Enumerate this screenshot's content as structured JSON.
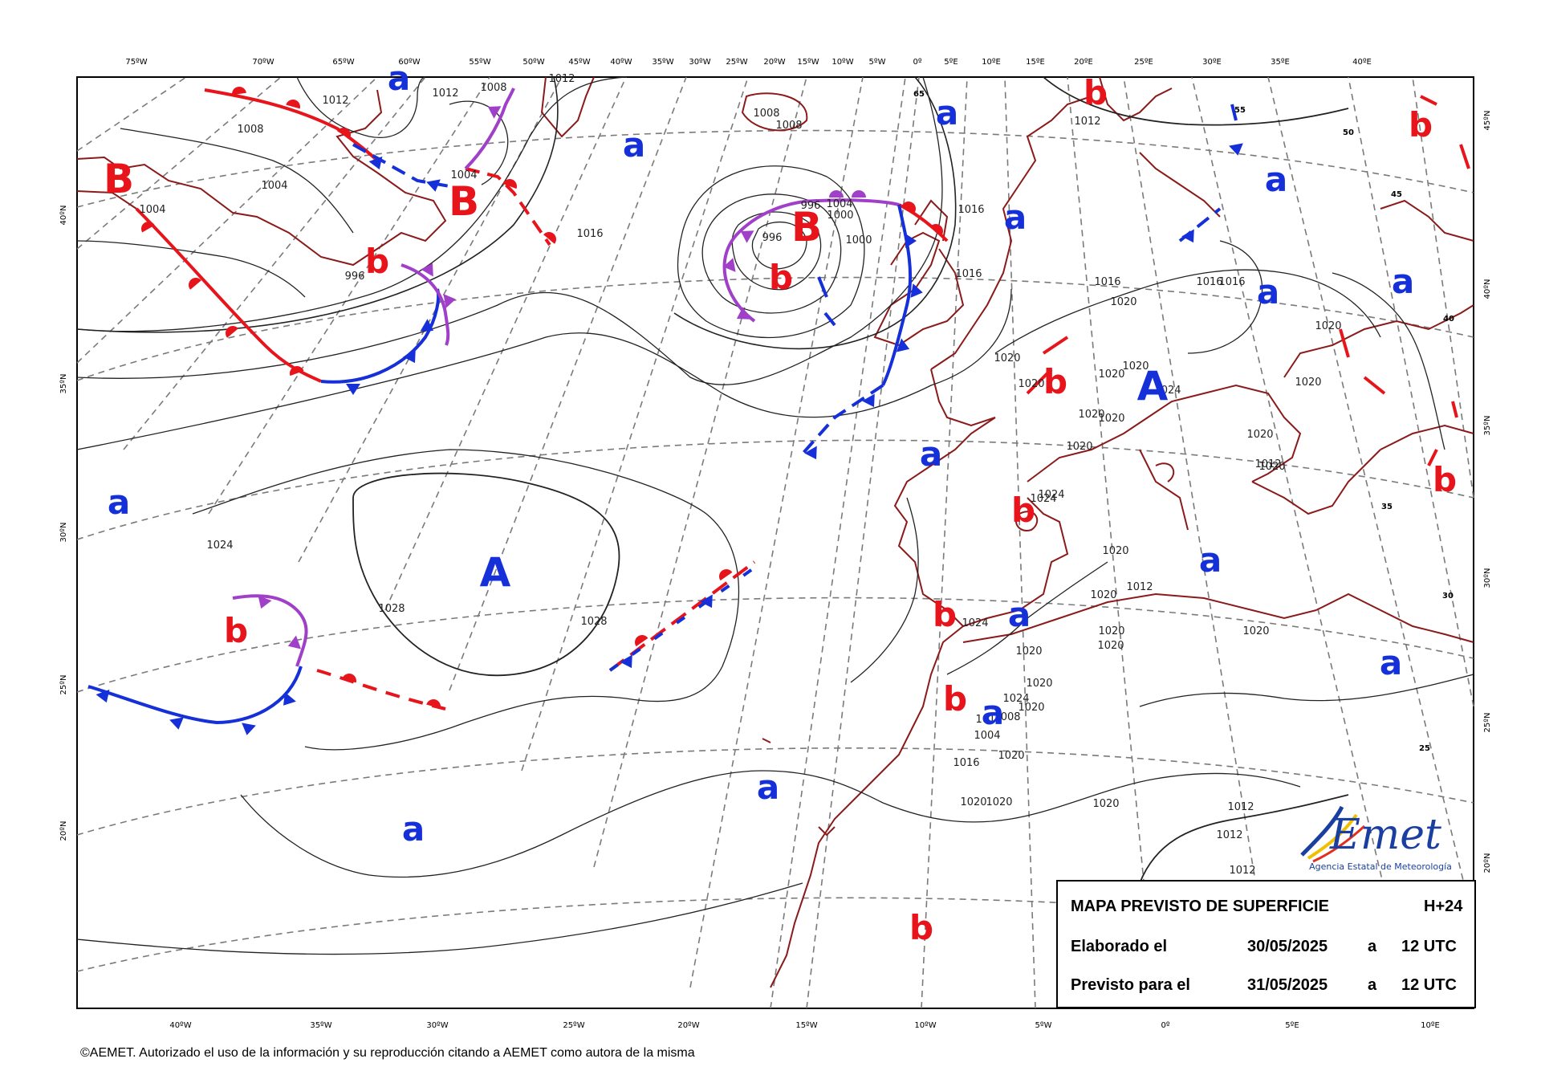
{
  "map": {
    "top_lon_labels": [
      "75ºW",
      "70ºW",
      "65ºW",
      "60ºW",
      "55ºW",
      "50ºW",
      "45ºW",
      "40ºW",
      "35ºW",
      "30ºW",
      "25ºW",
      "20ºW",
      "15ºW",
      "10ºW",
      "5ºW",
      "0º",
      "5ºE",
      "10ºE",
      "15ºE",
      "20ºE",
      "25ºE",
      "30ºE",
      "35ºE",
      "40ºE"
    ],
    "bottom_lon_labels": [
      "40ºW",
      "35ºW",
      "30ºW",
      "25ºW",
      "20ºW",
      "15ºW",
      "10ºW",
      "5ºW",
      "0º",
      "5ºE",
      "10ºE"
    ],
    "left_lat_labels": [
      "40ºN",
      "35ºN",
      "30ºN",
      "25ºN",
      "20ºN"
    ],
    "right_lat_labels": [
      "45ºN",
      "40ºN",
      "35ºN",
      "30ºN",
      "25ºN",
      "20ºN"
    ],
    "inner_lat_marks": [
      "65",
      "55",
      "50",
      "45",
      "40",
      "35",
      "30",
      "25"
    ],
    "pressure_centers": [
      {
        "label": "B",
        "type": "low"
      },
      {
        "label": "B",
        "type": "low"
      },
      {
        "label": "B",
        "type": "low"
      },
      {
        "label": "A",
        "type": "high"
      },
      {
        "label": "A",
        "type": "high"
      }
    ],
    "relative_labels": {
      "a": "a",
      "b": "b"
    },
    "isobar_labels": [
      "1012",
      "1012",
      "1012",
      "1012",
      "1008",
      "1008",
      "1008",
      "1008",
      "1004",
      "1004",
      "1004",
      "1000",
      "1000",
      "1004",
      "996",
      "996",
      "996",
      "1016",
      "1016",
      "1016",
      "1016",
      "1016",
      "1016",
      "1020",
      "1020",
      "1020",
      "1020",
      "1020",
      "1020",
      "1020",
      "1020",
      "1020",
      "1020",
      "1020",
      "1020",
      "1024",
      "1024",
      "1024",
      "1024",
      "1024",
      "1028",
      "1028",
      "1012",
      "1012",
      "1012",
      "1008",
      "1004",
      "1024",
      "1016",
      "1020",
      "1020",
      "1020",
      "1020",
      "1020",
      "1020",
      "1020",
      "1020",
      "1020",
      "1020",
      "1020",
      "1020",
      "1012",
      "1012",
      "1012"
    ],
    "colors": {
      "low": "#e8141b",
      "high": "#1530d8",
      "warm_front": "#e8141b",
      "cold_front": "#1530d8",
      "occluded_front": "#a040c8",
      "coast": "#8b1a1a",
      "isobar": "#222222",
      "grid": "#7a7a7a"
    }
  },
  "legend": {
    "title": "MAPA PREVISTO DE SUPERFICIE",
    "range": "H+24",
    "made_label": "Elaborado el",
    "made_date": "30/05/2025",
    "made_at": "a",
    "made_time": "12 UTC",
    "valid_label": "Previsto para el",
    "valid_date": "31/05/2025",
    "valid_at": "a",
    "valid_time": "12 UTC"
  },
  "logo": {
    "name": "AEmet",
    "subtitle": "Agencia Estatal de Meteorología"
  },
  "footer": "©AEMET. Autorizado el uso de la información y su reproducción citando a AEMET como autora de la misma"
}
